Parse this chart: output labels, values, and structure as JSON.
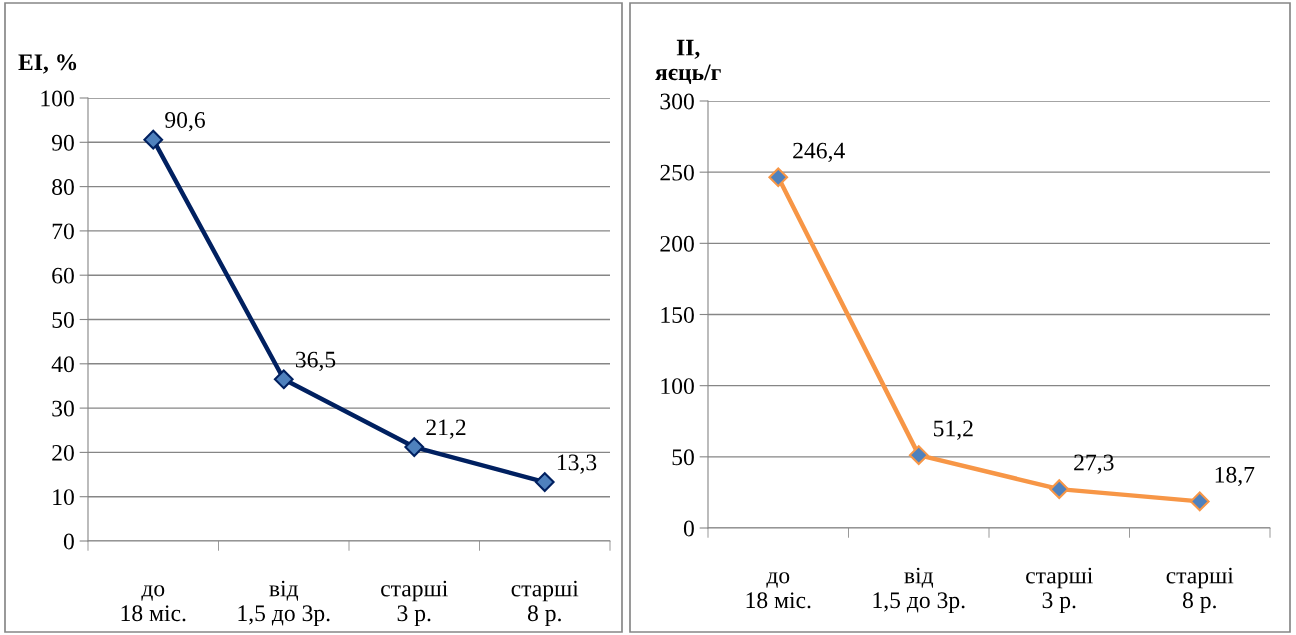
{
  "chart_data": [
    {
      "type": "line",
      "ylabel": "EI, %",
      "categories": [
        "до\n18 міс.",
        "від\n1,5 до 3р.",
        "старші\n3 р.",
        "старші\n8 р."
      ],
      "series": [
        {
          "color": "#002060",
          "colors": [
            "#4f81bd",
            "#4f81bd",
            "#4f81bd",
            "#4f81bd"
          ],
          "values": [
            90.6,
            36.5,
            21.2,
            13.3
          ],
          "value_labels": [
            "90,6",
            "36,5",
            "21,2",
            "13,3"
          ]
        }
      ],
      "ylim": [
        0,
        100
      ],
      "yticks": [
        0,
        10,
        20,
        30,
        40,
        50,
        60,
        70,
        80,
        90,
        100
      ],
      "grid": "y",
      "marker": "diamond",
      "line_style": "solid"
    },
    {
      "type": "line",
      "ylabel": "II,\nяєць/г",
      "categories": [
        "до\n18 міс.",
        "від\n1,5 до 3р.",
        "старші\n3 р.",
        "старші\n8 р."
      ],
      "series": [
        {
          "color": "#f79646",
          "colors": [
            "#4f81bd",
            "#4f81bd",
            "#4f81bd",
            "#4f81bd"
          ],
          "values": [
            246.4,
            51.2,
            27.3,
            18.7
          ],
          "value_labels": [
            "246,4",
            "51,2",
            "27,3",
            "18,7"
          ]
        }
      ],
      "ylim": [
        0,
        300
      ],
      "yticks": [
        0,
        50,
        100,
        150,
        200,
        250,
        300
      ],
      "grid": "y",
      "marker": "diamond",
      "line_style": "solid"
    }
  ]
}
